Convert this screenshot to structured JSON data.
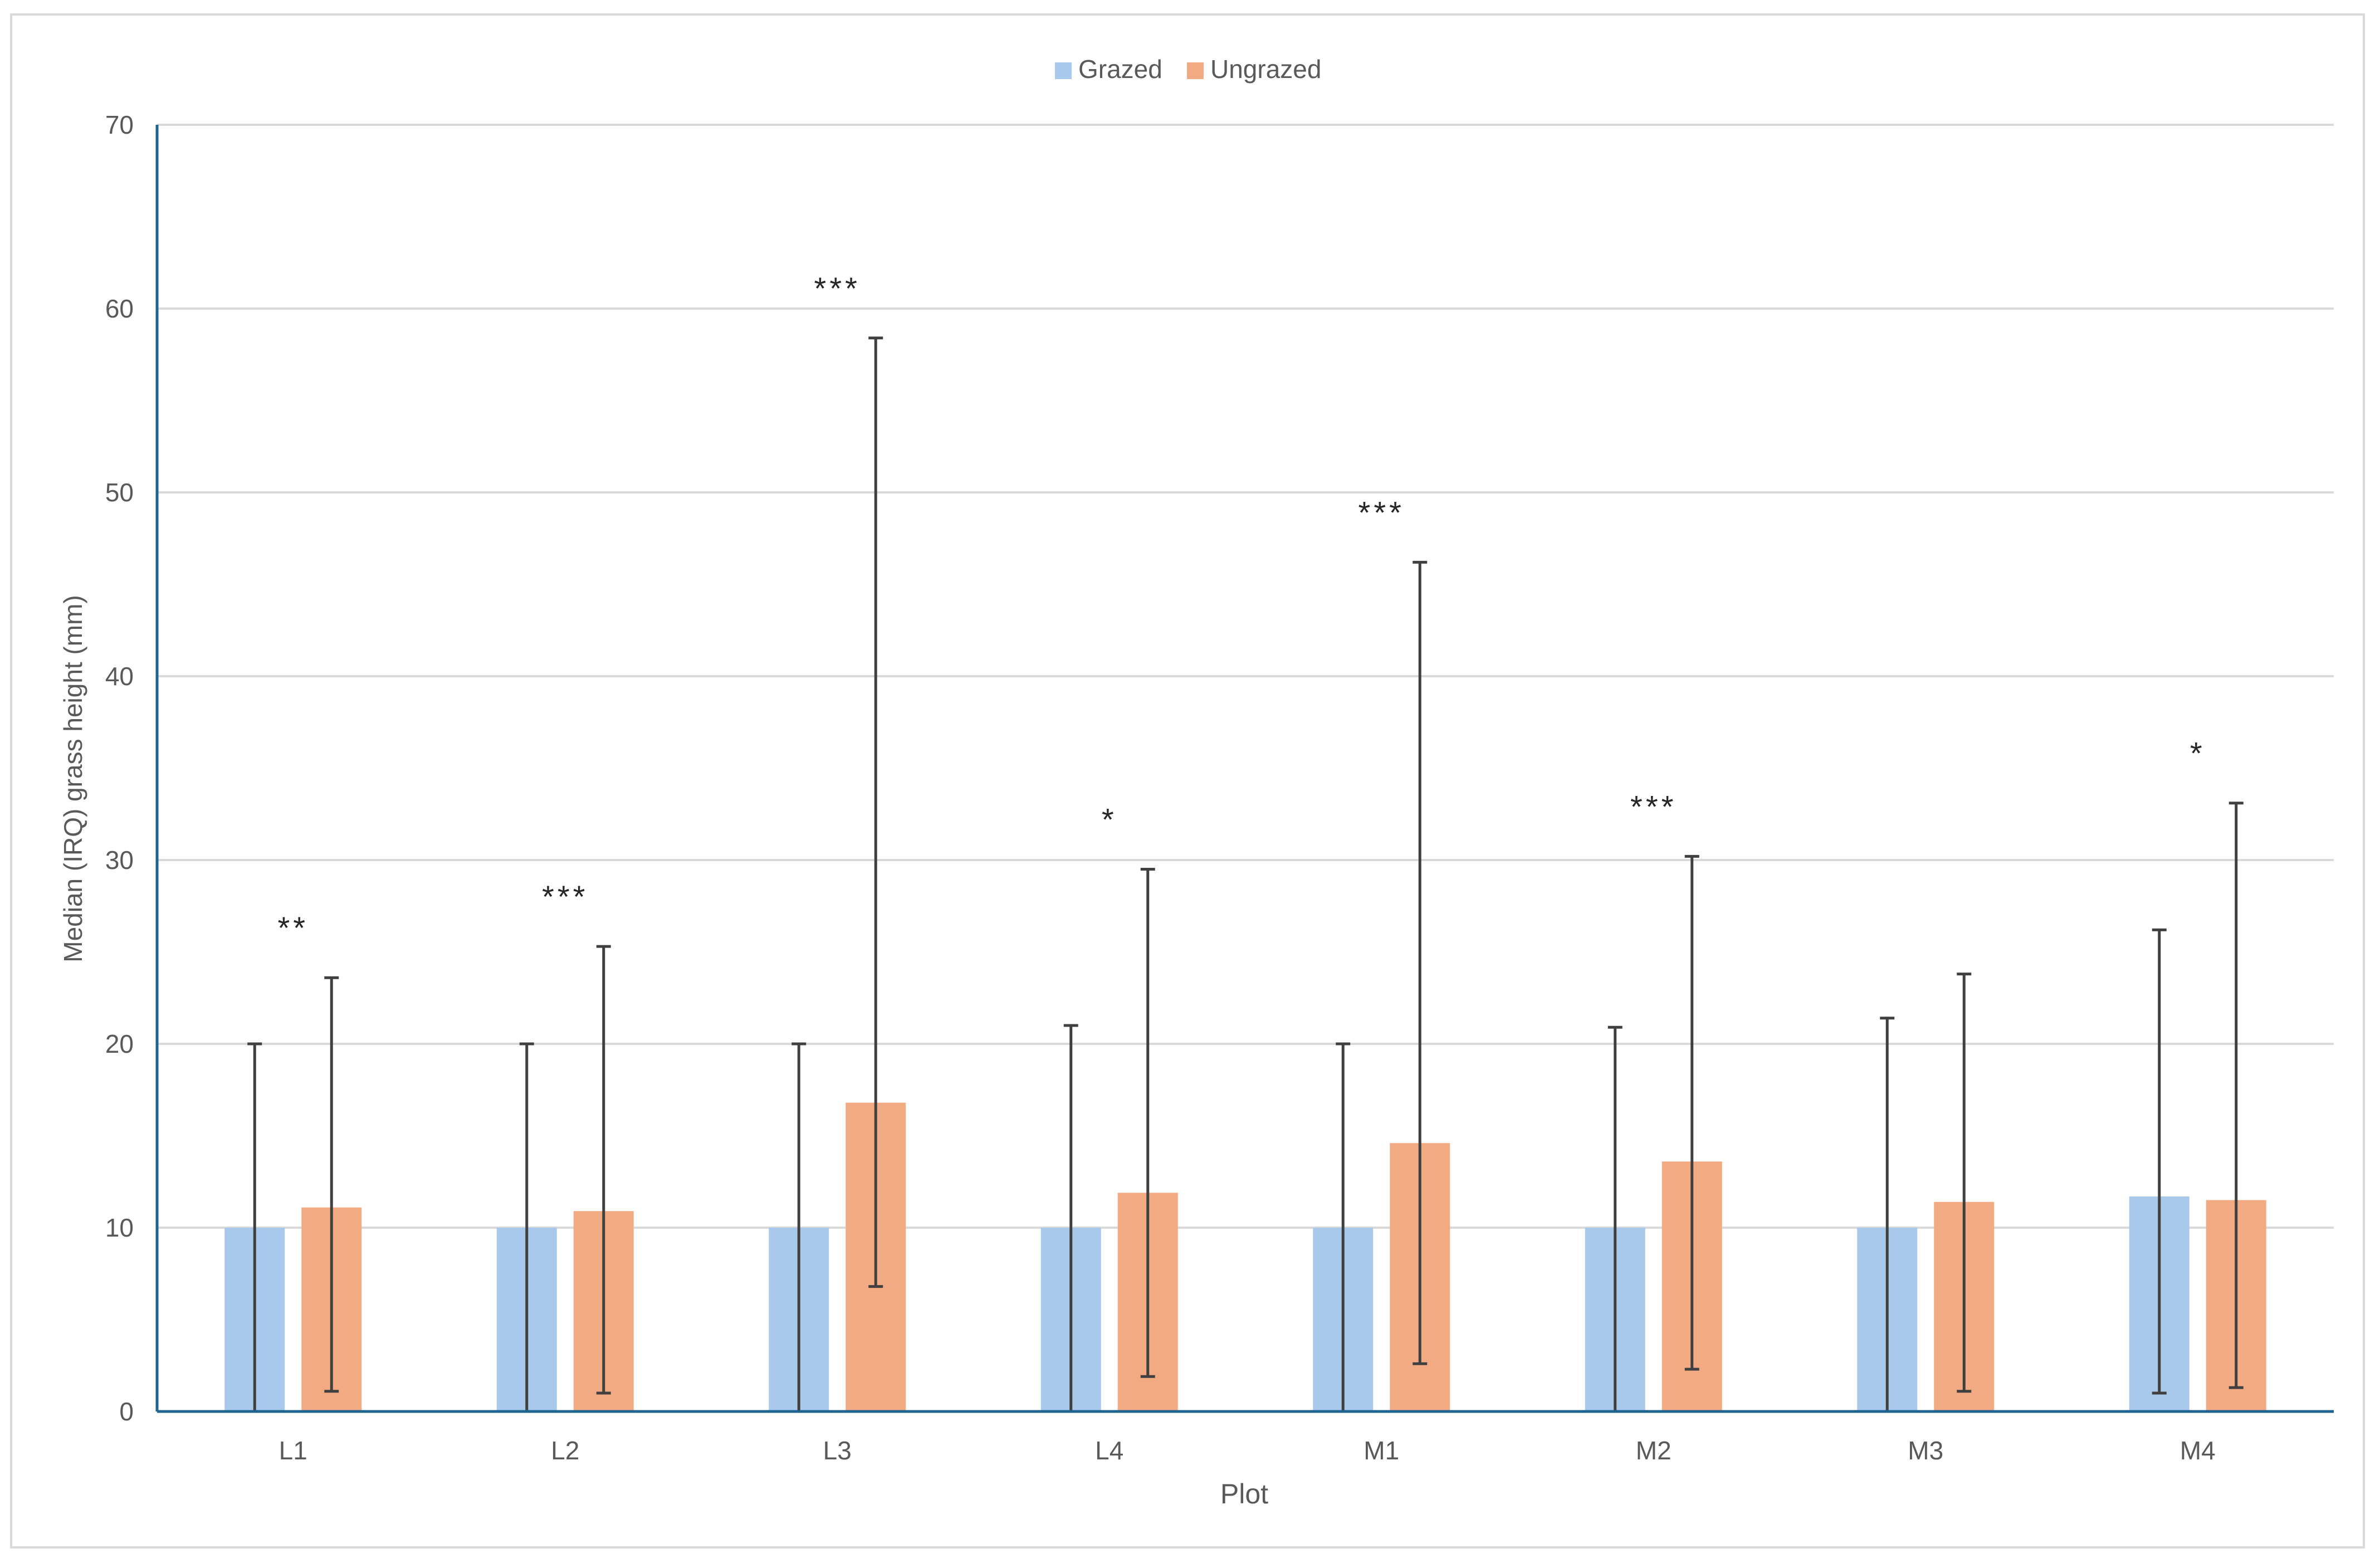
{
  "chart_data": {
    "type": "bar",
    "title": "",
    "xlabel": "Plot",
    "ylabel": "Median (IRQ) grass height (mm)",
    "ylim": [
      0,
      70
    ],
    "yticks": [
      0,
      10,
      20,
      30,
      40,
      50,
      60,
      70
    ],
    "grid": true,
    "legend_position": "top-center",
    "categories": [
      "L1",
      "L2",
      "L3",
      "L4",
      "M1",
      "M2",
      "M3",
      "M4"
    ],
    "series": [
      {
        "name": "Grazed",
        "color": "#a9c9ec",
        "values": [
          10,
          10,
          10,
          10,
          10,
          10,
          10,
          11.7
        ],
        "error_low": [
          0,
          0,
          0,
          0,
          0,
          0,
          0,
          1
        ],
        "error_high": [
          20,
          20,
          20,
          21,
          20,
          20.9,
          21.4,
          26.2
        ]
      },
      {
        "name": "Ungrazed",
        "color": "#f2aa82",
        "values": [
          11.1,
          10.9,
          16.8,
          11.9,
          14.6,
          13.6,
          11.4,
          11.5
        ],
        "error_low": [
          1.1,
          1,
          6.8,
          1.9,
          2.6,
          2.3,
          1.1,
          1.3
        ],
        "error_high": [
          23.6,
          25.3,
          58.4,
          29.5,
          46.2,
          30.2,
          23.8,
          33.1
        ]
      }
    ],
    "annotations": [
      "**",
      "***",
      "***",
      "*",
      "***",
      "***",
      "",
      "*"
    ]
  }
}
